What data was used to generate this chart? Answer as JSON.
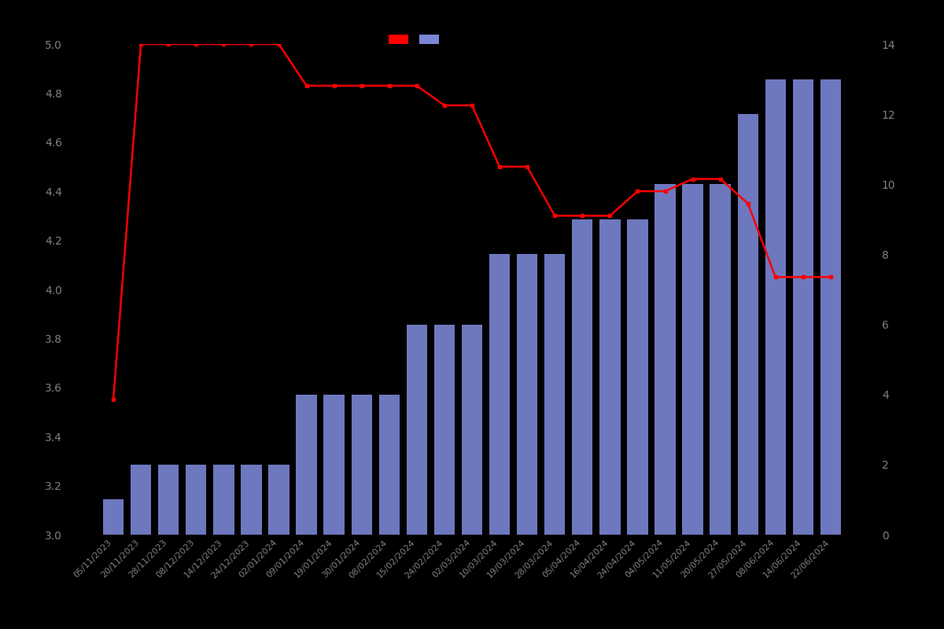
{
  "dates": [
    "05/11/2023",
    "20/11/2023",
    "28/11/2023",
    "08/12/2023",
    "14/12/2023",
    "24/12/2023",
    "02/01/2024",
    "09/01/2024",
    "19/01/2024",
    "30/01/2024",
    "08/02/2024",
    "15/02/2024",
    "24/02/2024",
    "02/03/2024",
    "10/03/2024",
    "19/03/2024",
    "28/03/2024",
    "05/04/2024",
    "16/04/2024",
    "24/04/2024",
    "04/05/2024",
    "11/05/2024",
    "20/05/2024",
    "27/05/2024",
    "08/06/2024",
    "14/06/2024",
    "22/06/2024"
  ],
  "bar_values": [
    1,
    2,
    2,
    2,
    2,
    2,
    2,
    4,
    4,
    4,
    4,
    6,
    6,
    6,
    8,
    8,
    8,
    9,
    9,
    9,
    10,
    10,
    10,
    12,
    13,
    13,
    13
  ],
  "line_values": [
    3.55,
    5.0,
    5.0,
    5.0,
    5.0,
    5.0,
    5.0,
    4.83,
    4.83,
    4.83,
    4.83,
    4.83,
    4.75,
    4.75,
    4.5,
    4.5,
    4.3,
    4.3,
    4.3,
    4.4,
    4.4,
    4.45,
    4.45,
    4.35,
    4.05,
    4.05,
    4.05
  ],
  "line_marker_indices": [
    1,
    2,
    3,
    4,
    5,
    6,
    7,
    8,
    9,
    10,
    11,
    12,
    13,
    14,
    15,
    16,
    17,
    18,
    19,
    20,
    21,
    22,
    23,
    24,
    25,
    26
  ],
  "bar_color": "#7b86d4",
  "line_color": "#ff0000",
  "background_color": "#000000",
  "text_color": "#808080",
  "ylim_left": [
    3.0,
    5.0
  ],
  "ylim_right": [
    0,
    14
  ],
  "yticks_left": [
    3.0,
    3.2,
    3.4,
    3.6,
    3.8,
    4.0,
    4.2,
    4.4,
    4.6,
    4.8,
    5.0
  ],
  "yticks_right": [
    0,
    2,
    4,
    6,
    8,
    10,
    12,
    14
  ],
  "figsize": [
    12.0,
    8.0
  ],
  "dpi": 100
}
